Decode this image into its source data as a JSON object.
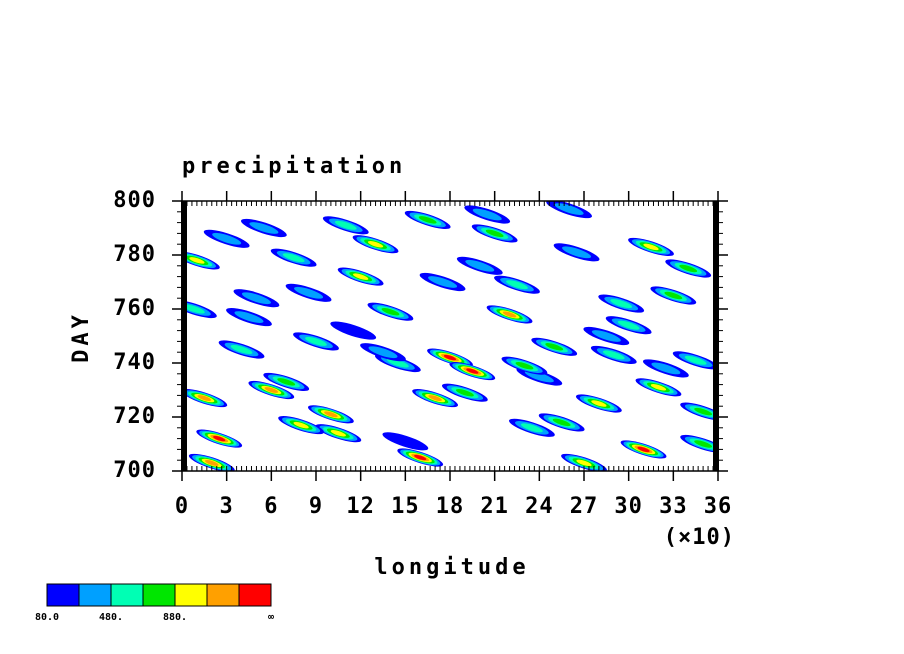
{
  "chart_data": {
    "type": "contour",
    "title": "precipitation",
    "x_label": "longitude",
    "x_multiplier": "(×10)",
    "y_label": "DAY",
    "xlim": [
      0,
      36
    ],
    "ylim": [
      700,
      800
    ],
    "xticks": [
      0,
      3,
      6,
      9,
      12,
      15,
      18,
      21,
      24,
      27,
      30,
      33,
      36
    ],
    "yticks": [
      700,
      720,
      740,
      760,
      780,
      800
    ],
    "x": [
      1,
      2.5,
      4,
      5.5,
      7,
      8.5,
      10,
      11.5,
      13,
      14.5,
      16,
      17.5,
      19,
      20.5,
      22,
      23.5,
      25,
      26.5,
      28,
      29.5,
      31,
      32.5,
      34,
      35,
      0.8,
      3,
      6,
      9,
      12,
      15,
      18,
      21,
      24,
      27,
      30,
      33,
      1.5,
      4.5,
      7.5,
      10.5,
      13.5,
      16.5,
      19.5,
      22.5,
      25.5,
      28.5,
      31.5,
      34.5,
      2,
      5,
      8,
      11,
      14,
      17,
      20,
      23,
      26,
      29,
      32,
      35
    ],
    "y": [
      778,
      712,
      745,
      790,
      733,
      766,
      721,
      752,
      784,
      740,
      705,
      770,
      729,
      795,
      758,
      716,
      746,
      781,
      725,
      762,
      708,
      738,
      775,
      722,
      760,
      786,
      730,
      748,
      772,
      711,
      742,
      788,
      735,
      703,
      754,
      765,
      727,
      757,
      779,
      714,
      744,
      793,
      737,
      769,
      718,
      750,
      783,
      741,
      703,
      764,
      717,
      791,
      759,
      727,
      776,
      739,
      797,
      743,
      731,
      710
    ],
    "values": [
      900,
      1300,
      500,
      300,
      700,
      450,
      1100,
      250,
      950,
      650,
      1350,
      400,
      850,
      300,
      1200,
      550,
      750,
      350,
      1000,
      600,
      1400,
      450,
      800,
      700,
      500,
      350,
      1150,
      600,
      900,
      250,
      1300,
      700,
      450,
      1000,
      550,
      850,
      1250,
      400,
      650,
      950,
      300,
      800,
      1450,
      500,
      750,
      350,
      1050,
      600,
      1200,
      450,
      900,
      550,
      700,
      1100,
      400,
      850,
      300,
      650,
      1000,
      750
    ],
    "levels": [
      80,
      280,
      480,
      680,
      880,
      1080,
      1280
    ],
    "colors": [
      "#0000ff",
      "#00a0ff",
      "#00ffb4",
      "#00e600",
      "#ffff00",
      "#ffa000",
      "#ff0000"
    ],
    "colorbar_labels": [
      "80.0",
      null,
      "480.",
      null,
      "880.",
      null,
      null,
      "∞"
    ]
  }
}
